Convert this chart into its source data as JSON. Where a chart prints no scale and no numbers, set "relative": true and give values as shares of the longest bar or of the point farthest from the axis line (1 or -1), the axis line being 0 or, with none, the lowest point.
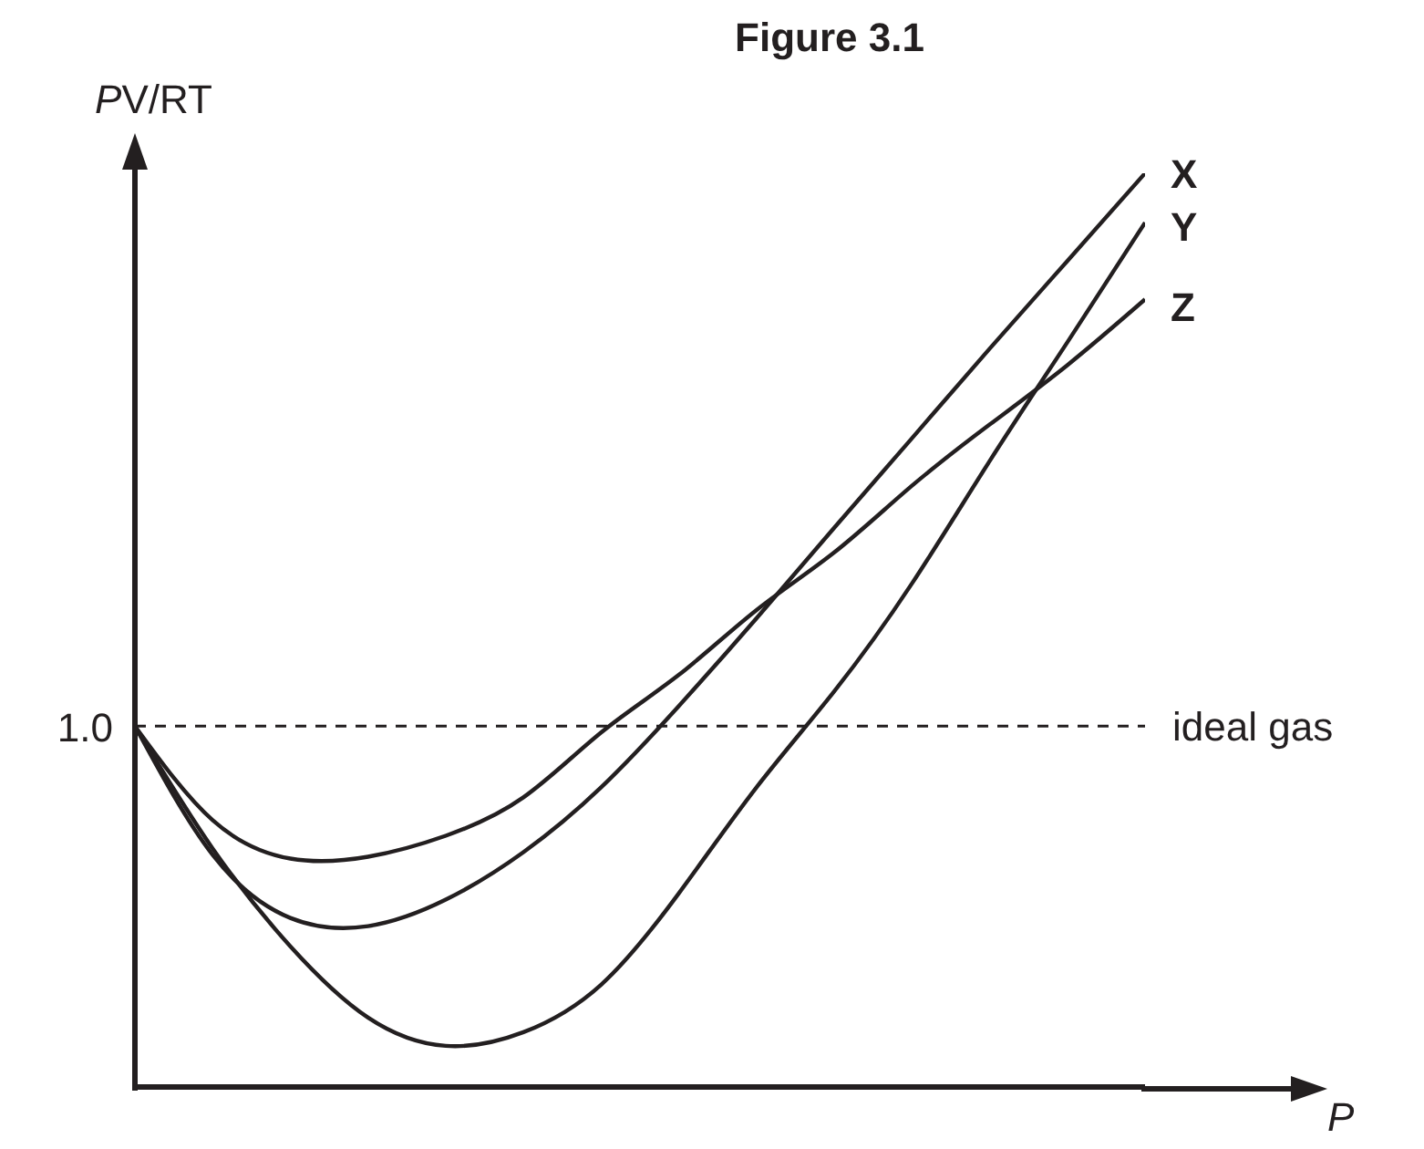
{
  "chart_data": {
    "type": "line",
    "title": "Figure 3.1",
    "xlabel": "P",
    "ylabel": "PV/RT",
    "relative": true,
    "categories": [
      null,
      null,
      null,
      null,
      null,
      null,
      null,
      null,
      null,
      null,
      null,
      null,
      null,
      null
    ],
    "series": [
      {
        "name": "X",
        "color": "#231f20",
        "values": [
          0.395,
          0.254,
          0.185,
          0.176,
          0.205,
          0.257,
          0.328,
          0.417,
          0.513,
          0.612,
          0.71,
          0.808,
          0.904,
          1
        ]
      },
      {
        "name": "Y",
        "color": "#231f20",
        "values": [
          0.395,
          0.261,
          0.154,
          0.076,
          0.045,
          0.06,
          0.112,
          0.212,
          0.328,
          0.433,
          0.551,
          0.685,
          0.815,
          0.946
        ]
      },
      {
        "name": "Z",
        "color": "#231f20",
        "values": [
          0.395,
          0.292,
          0.25,
          0.252,
          0.275,
          0.317,
          0.388,
          0.451,
          0.522,
          0.585,
          0.658,
          0.725,
          0.79,
          0.862
        ]
      }
    ],
    "ref_lines": [
      {
        "axis": "y",
        "value": 0.395,
        "label": "ideal gas",
        "line_style": "dashed",
        "color": "#231f20"
      }
    ],
    "annotations": [
      "1.0"
    ],
    "marker": "none",
    "line_style": "solid",
    "legend": false,
    "grid": false
  }
}
